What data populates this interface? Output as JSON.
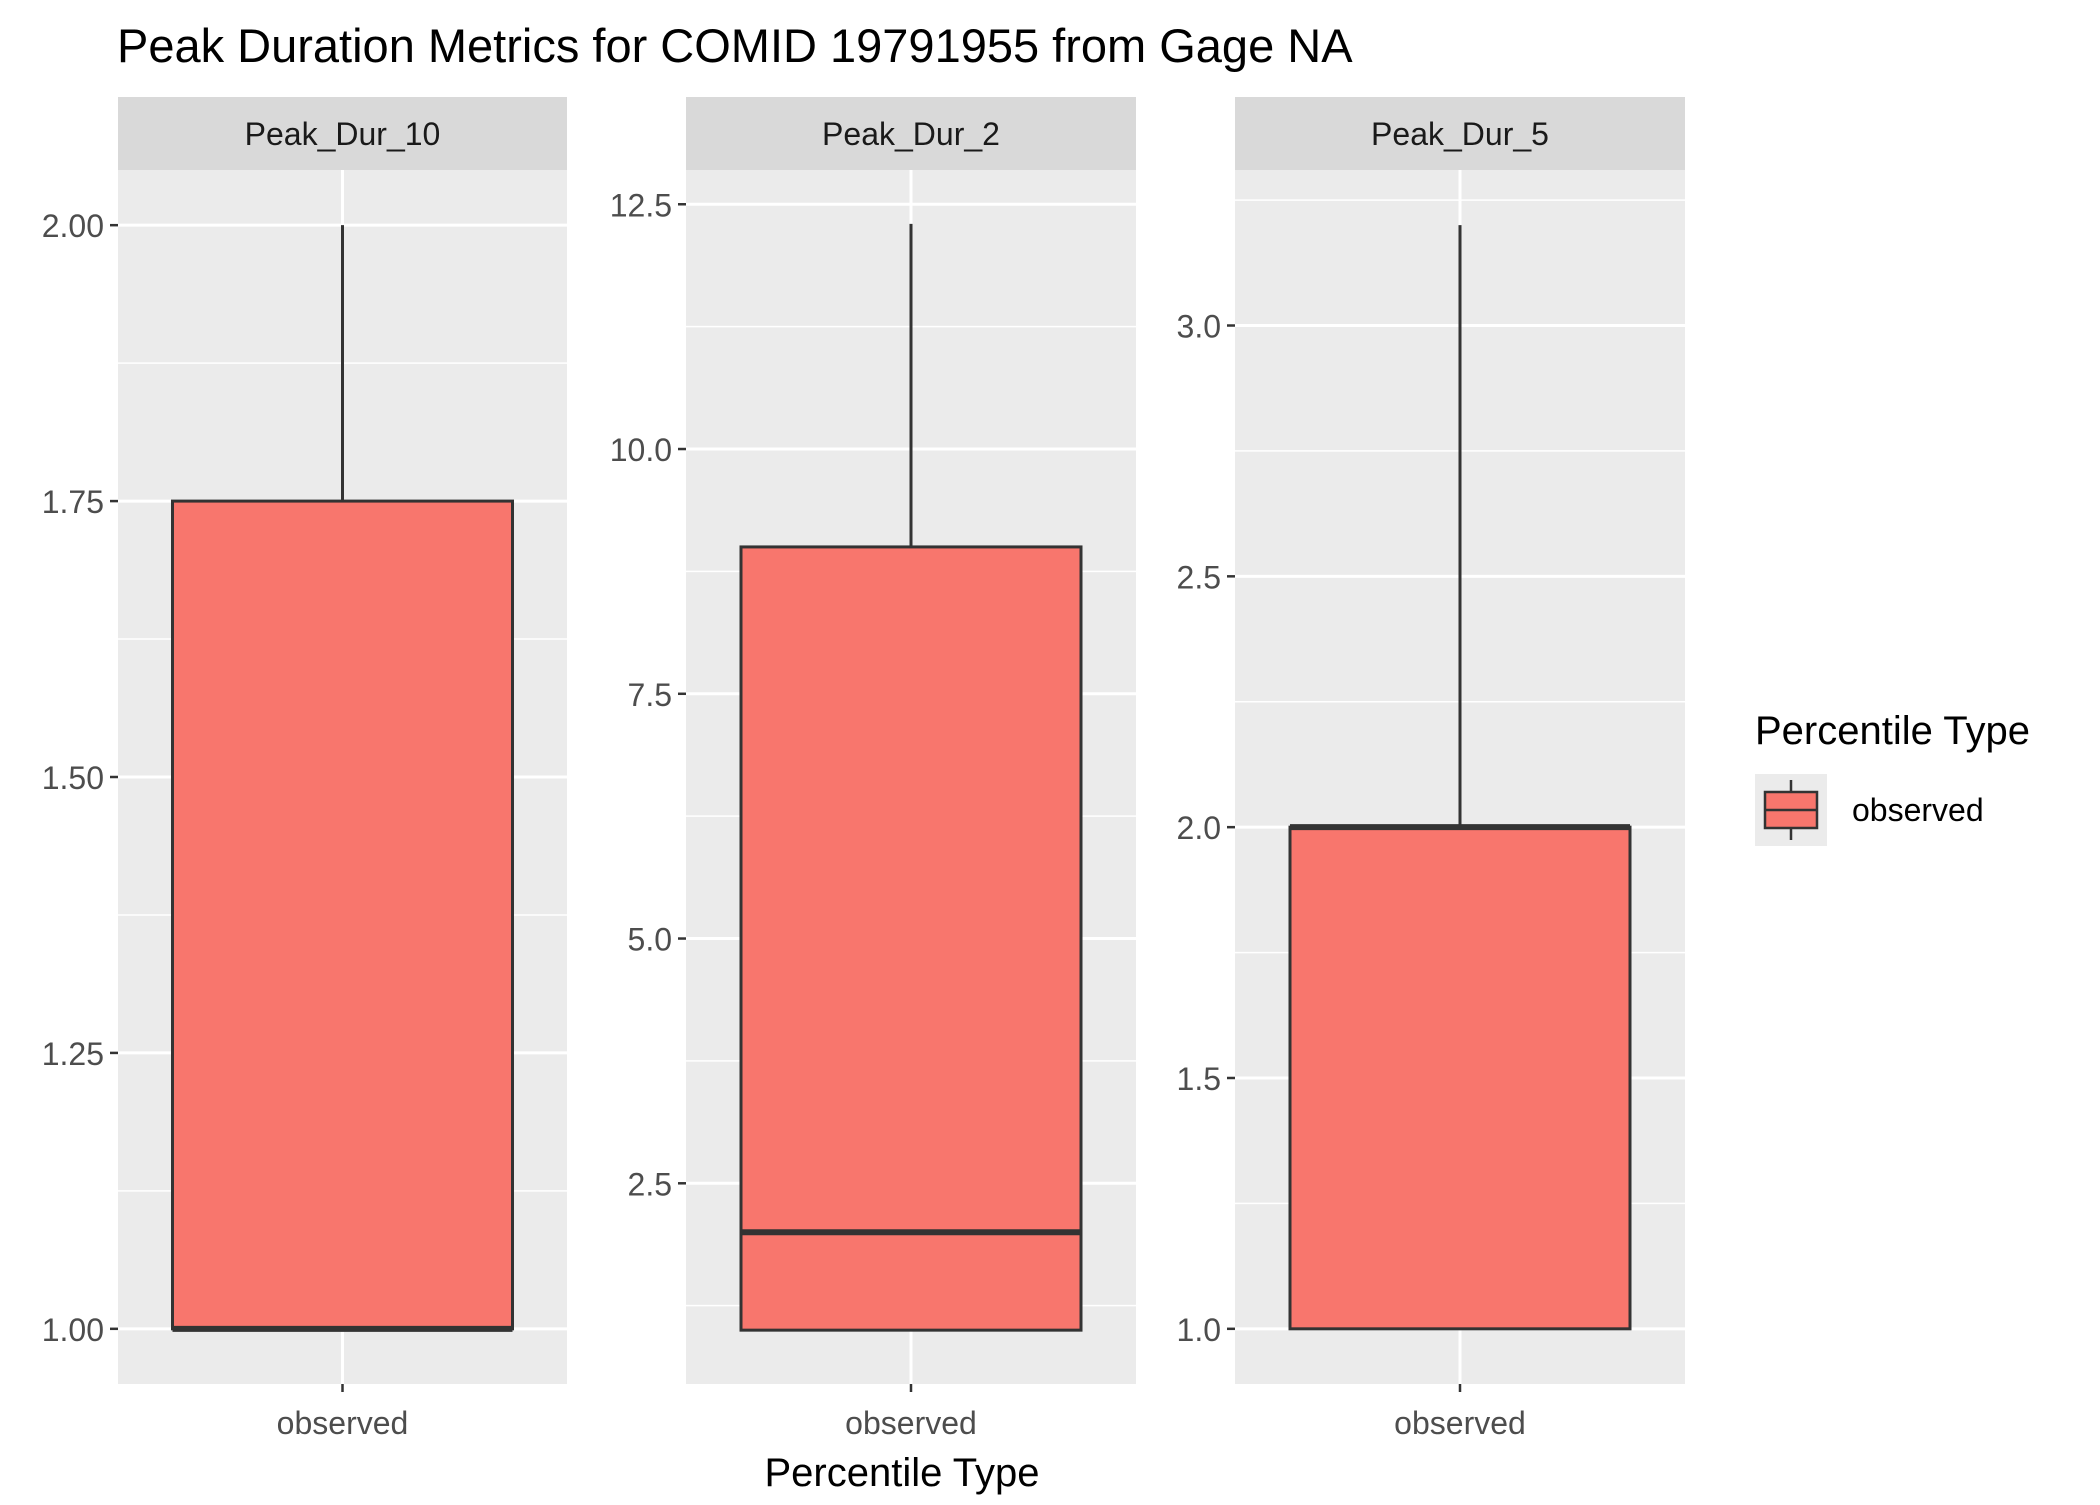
{
  "chart_data": {
    "type": "box",
    "title": "Peak Duration Metrics for COMID 19791955 from Gage NA",
    "xlabel": "Percentile Type",
    "ylabel": "",
    "legend": {
      "title": "Percentile Type",
      "position": "right",
      "entries": [
        "observed"
      ]
    },
    "grid": true,
    "fill_color": "#F8766D",
    "panels": [
      {
        "name": "Peak_Dur_10",
        "category": "observed",
        "ylim": [
          0.95,
          2.05
        ],
        "yticks": [
          1.0,
          1.25,
          1.5,
          1.75,
          2.0
        ],
        "ytick_labels": [
          "1.00",
          "1.25",
          "1.50",
          "1.75",
          "2.00"
        ],
        "ymin": 1.0,
        "q1": 1.0,
        "median": 1.0,
        "q3": 1.75,
        "ymax": 2.0
      },
      {
        "name": "Peak_Dur_2",
        "category": "observed",
        "ylim": [
          0.45,
          12.85
        ],
        "yticks": [
          2.5,
          5.0,
          7.5,
          10.0,
          12.5
        ],
        "ytick_labels": [
          "2.5",
          "5.0",
          "7.5",
          "10.0",
          "12.5"
        ],
        "ymin": 1.0,
        "q1": 1.0,
        "median": 2.0,
        "q3": 9.0,
        "ymax": 12.3
      },
      {
        "name": "Peak_Dur_5",
        "category": "observed",
        "ylim": [
          0.89,
          3.31
        ],
        "yticks": [
          1.0,
          1.5,
          2.0,
          2.5,
          3.0
        ],
        "ytick_labels": [
          "1.0",
          "1.5",
          "2.0",
          "2.5",
          "3.0"
        ],
        "ymin": 1.0,
        "q1": 1.0,
        "median": 2.0,
        "q3": 2.0,
        "ymax": 3.2
      }
    ]
  }
}
